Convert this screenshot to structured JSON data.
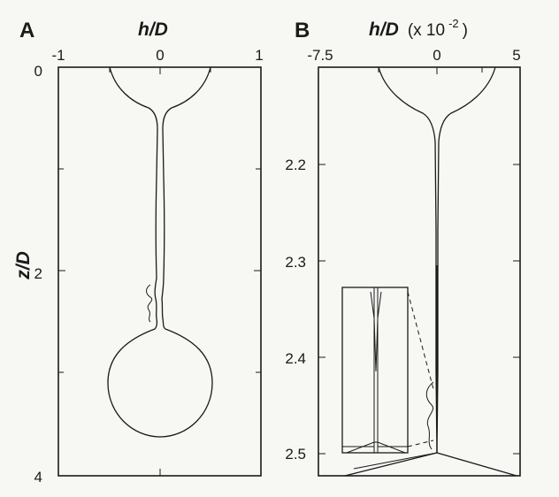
{
  "chart_data": [
    {
      "type": "line",
      "panel": "A",
      "xlabel": "h/D",
      "ylabel": "z/D",
      "x_ticks": [
        "-1",
        "0",
        "1"
      ],
      "y_ticks": [
        "0",
        "2",
        "4"
      ],
      "xlim": [
        -1,
        1
      ],
      "ylim": [
        4,
        0
      ],
      "grid": false,
      "series": [
        {
          "values": [
            [
              0,
              0.55
            ],
            [
              -0.05,
              0.35
            ],
            [
              -0.1,
              0.29
            ],
            [
              -0.2,
              0.2
            ],
            [
              -0.3,
              0.12
            ],
            [
              -0.4,
              0.05
            ],
            [
              -0.5,
              0.0
            ]
          ]
        }
      ]
    },
    {
      "type": "line",
      "panel": "B",
      "xlabel": "h/D",
      "xlabel_suffix": "(x 10",
      "xlabel_exp": "-2",
      "xlabel_close": ")",
      "ylabel": "",
      "x_ticks": [
        "-7.5",
        "0",
        "5"
      ],
      "y_ticks": [
        "2.2",
        "2.3",
        "2.4",
        "2.5"
      ],
      "xlim": [
        -7.5,
        5
      ],
      "ylim": [
        2.525,
        2.08
      ],
      "grid": false,
      "series": [
        {
          "values": [
            [
              0,
              2.16
            ],
            [
              -0.5,
              2.14
            ],
            [
              -1.0,
              2.13
            ],
            [
              -2.0,
              2.11
            ],
            [
              -3.0,
              2.095
            ],
            [
              -4.0,
              2.083
            ],
            [
              -4.5,
              2.08
            ]
          ]
        }
      ]
    }
  ]
}
